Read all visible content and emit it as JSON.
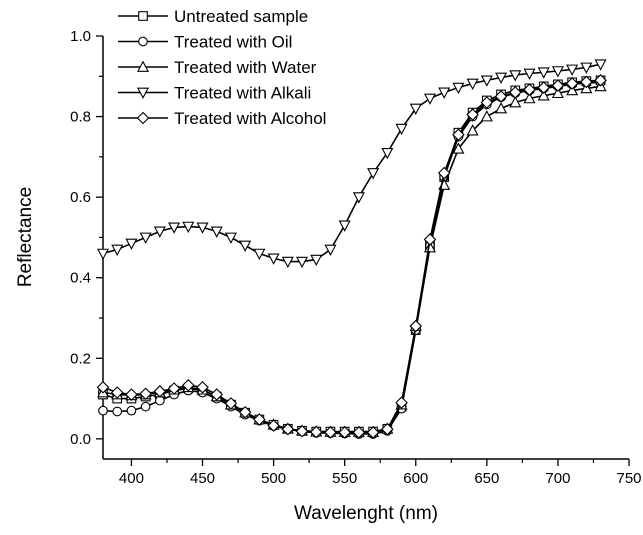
{
  "chart_data": {
    "type": "line",
    "title": "",
    "xlabel": "Wavelenght (nm)",
    "ylabel": "Reflectance",
    "xlim": [
      380,
      750
    ],
    "ylim": [
      -0.05,
      1.0
    ],
    "xticks": [
      400,
      450,
      500,
      550,
      600,
      650,
      700,
      750
    ],
    "yticks": [
      0.0,
      0.2,
      0.4,
      0.6,
      0.8,
      1.0
    ],
    "x_tick_labels": [
      "400",
      "450",
      "500",
      "550",
      "600",
      "650",
      "700",
      "750"
    ],
    "y_tick_labels": [
      "0.0",
      "0.2",
      "0.4",
      "0.6",
      "0.8",
      "1.0"
    ],
    "grid": false,
    "legend_position": "top-left",
    "line_color": "#000000",
    "x": [
      380,
      390,
      400,
      410,
      420,
      430,
      440,
      450,
      460,
      470,
      480,
      490,
      500,
      510,
      520,
      530,
      540,
      550,
      560,
      570,
      580,
      590,
      600,
      610,
      620,
      630,
      640,
      650,
      660,
      670,
      680,
      690,
      700,
      710,
      720,
      730
    ],
    "series": [
      {
        "name": "Untreated sample",
        "marker": "square",
        "values": [
          0.11,
          0.1,
          0.1,
          0.105,
          0.11,
          0.12,
          0.125,
          0.12,
          0.105,
          0.085,
          0.065,
          0.048,
          0.035,
          0.025,
          0.02,
          0.018,
          0.018,
          0.018,
          0.018,
          0.018,
          0.025,
          0.08,
          0.27,
          0.48,
          0.65,
          0.76,
          0.81,
          0.84,
          0.855,
          0.865,
          0.87,
          0.875,
          0.88,
          0.885,
          0.888,
          0.89
        ]
      },
      {
        "name": "Treated with Oil",
        "marker": "circle",
        "values": [
          0.07,
          0.068,
          0.07,
          0.08,
          0.095,
          0.11,
          0.12,
          0.115,
          0.1,
          0.08,
          0.06,
          0.045,
          0.032,
          0.024,
          0.018,
          0.015,
          0.014,
          0.013,
          0.012,
          0.012,
          0.02,
          0.075,
          0.27,
          0.48,
          0.65,
          0.75,
          0.8,
          0.83,
          0.848,
          0.858,
          0.865,
          0.87,
          0.875,
          0.88,
          0.883,
          0.885
        ]
      },
      {
        "name": "Treated with Water",
        "marker": "triangle-up",
        "values": [
          0.115,
          0.11,
          0.108,
          0.11,
          0.115,
          0.122,
          0.128,
          0.122,
          0.105,
          0.085,
          0.065,
          0.048,
          0.035,
          0.025,
          0.02,
          0.018,
          0.017,
          0.017,
          0.017,
          0.017,
          0.025,
          0.085,
          0.28,
          0.475,
          0.63,
          0.72,
          0.765,
          0.8,
          0.82,
          0.835,
          0.845,
          0.852,
          0.858,
          0.865,
          0.87,
          0.875
        ]
      },
      {
        "name": "Treated with Alkali",
        "marker": "triangle-down",
        "values": [
          0.46,
          0.47,
          0.485,
          0.5,
          0.515,
          0.525,
          0.527,
          0.525,
          0.515,
          0.5,
          0.48,
          0.46,
          0.448,
          0.44,
          0.44,
          0.445,
          0.47,
          0.53,
          0.6,
          0.66,
          0.71,
          0.77,
          0.82,
          0.845,
          0.86,
          0.872,
          0.882,
          0.89,
          0.897,
          0.903,
          0.907,
          0.91,
          0.913,
          0.917,
          0.922,
          0.93
        ]
      },
      {
        "name": "Treated with Alcohol",
        "marker": "diamond",
        "values": [
          0.128,
          0.115,
          0.11,
          0.112,
          0.118,
          0.125,
          0.133,
          0.128,
          0.11,
          0.088,
          0.066,
          0.048,
          0.033,
          0.024,
          0.019,
          0.017,
          0.016,
          0.016,
          0.016,
          0.016,
          0.024,
          0.09,
          0.28,
          0.495,
          0.66,
          0.755,
          0.805,
          0.835,
          0.85,
          0.86,
          0.867,
          0.872,
          0.877,
          0.882,
          0.886,
          0.89
        ]
      }
    ]
  }
}
